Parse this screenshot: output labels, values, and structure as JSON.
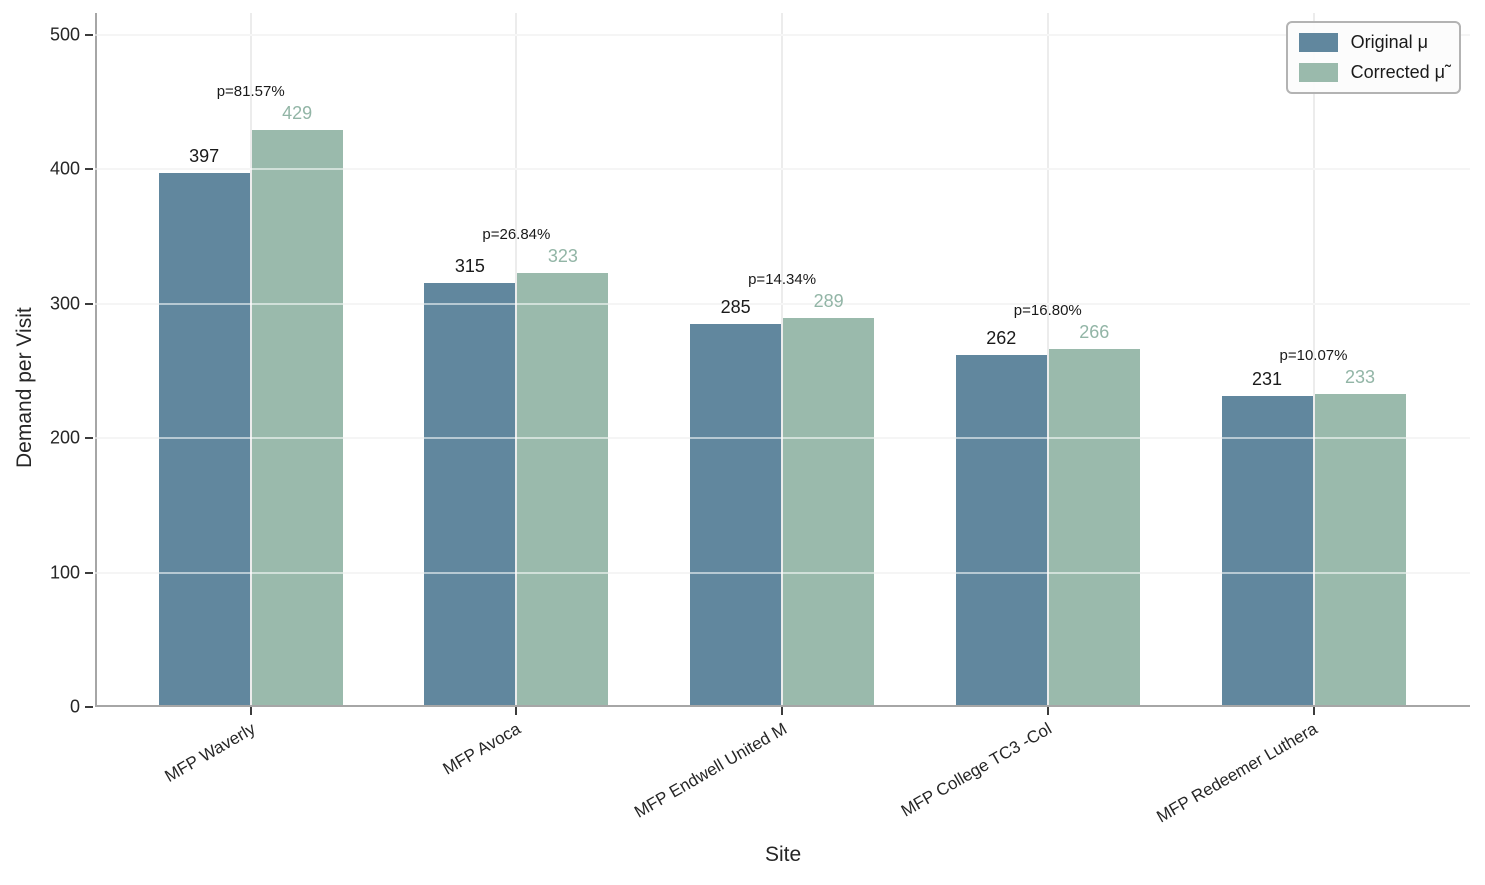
{
  "chart_data": {
    "type": "bar",
    "title": "",
    "xlabel": "Site",
    "ylabel": "Demand per Visit",
    "ylim": [
      0,
      516
    ],
    "yticks": [
      0,
      100,
      200,
      300,
      400,
      500
    ],
    "grid": true,
    "legend_position": "upper right",
    "categories": [
      "MFP Waverly",
      "MFP Avoca",
      "MFP Endwell United M",
      "MFP College TC3 -Col",
      "MFP Redeemer Luthera"
    ],
    "series": [
      {
        "name": "Original μ",
        "color": "#61879E",
        "label_color": "#1a1a1a",
        "values": [
          397,
          315,
          285,
          262,
          231
        ]
      },
      {
        "name": "Corrected μ̃",
        "color": "#9ABAAC",
        "label_color": "#92B5A6",
        "values": [
          429,
          323,
          289,
          266,
          233
        ]
      }
    ],
    "annotations": [
      "p=81.57%",
      "p=26.84%",
      "p=14.34%",
      "p=16.80%",
      "p=10.07%"
    ]
  }
}
